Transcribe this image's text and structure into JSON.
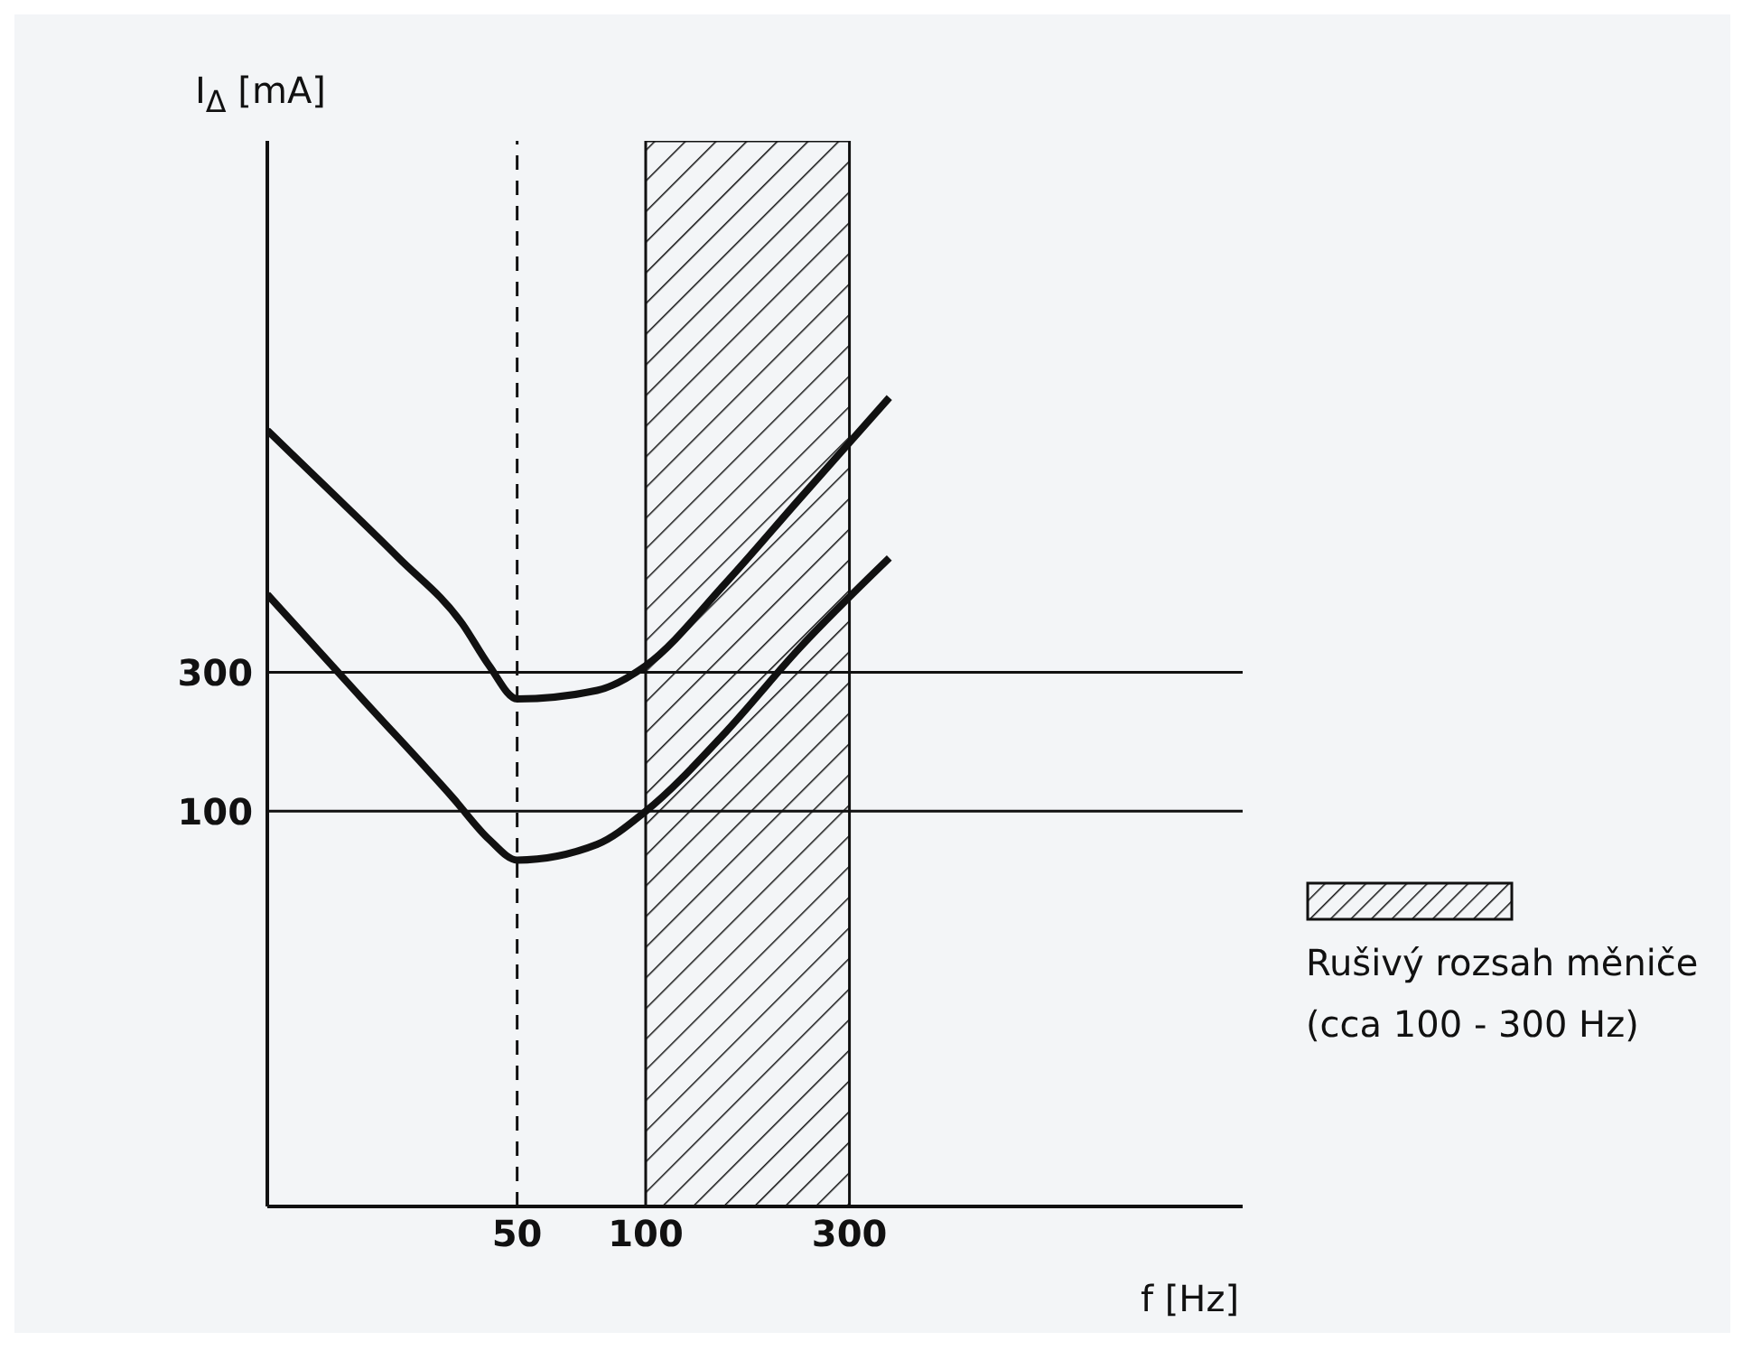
{
  "chart_data": {
    "type": "line",
    "xlabel": "f [Hz]",
    "ylabel": "I$_{Δ}$ [mA]",
    "log": "xy",
    "xlim": [
      13,
      2500
    ],
    "xticks": [
      50,
      100,
      300
    ],
    "ylim": [
      4.4,
      20000
    ],
    "yticks": [
      100,
      300
    ],
    "grid": "y",
    "marker": "none",
    "line_style": "solid",
    "series": [
      {
        "color": "#111111",
        "x": [
          13,
          17.8,
          26.4,
          37.2,
          43,
          50,
          77,
          100,
          154,
          228,
          372
        ],
        "values": [
          2030,
          1300,
          740,
          440,
          316,
          243,
          260,
          316,
          608,
          1170,
          2630
        ]
      },
      {
        "color": "#111111",
        "x": [
          13,
          21.7,
          35.4,
          43,
          50,
          77,
          100,
          154,
          228,
          372
        ],
        "values": [
          555,
          243,
          111,
          80,
          68,
          77,
          100,
          187,
          360,
          740
        ]
      }
    ],
    "ref_lines": [
      {
        "axis": "x",
        "value": 50,
        "line_style": "dashed",
        "color": "#111111"
      }
    ],
    "bands": [
      {
        "axis": "x",
        "from": 100,
        "to": 300,
        "label": "Rušivý rozsah měniče (cca 100 - 300 Hz)",
        "color": "#111111"
      }
    ]
  }
}
